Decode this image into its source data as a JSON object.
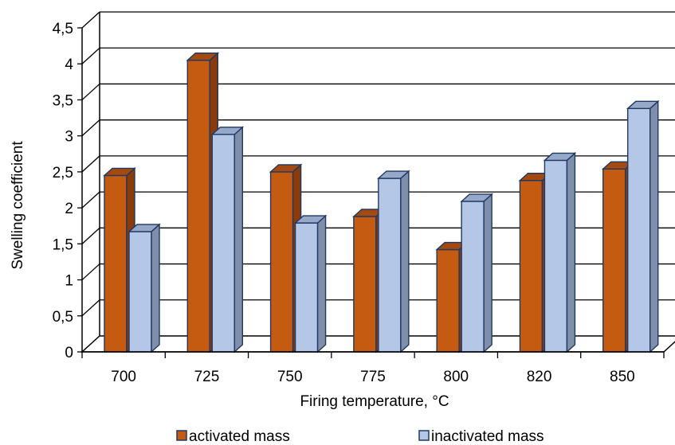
{
  "chart_data": {
    "type": "bar",
    "variant": "3d-clustered-column",
    "categories": [
      "700",
      "725",
      "750",
      "775",
      "800",
      "820",
      "850"
    ],
    "series": [
      {
        "name": "activated mass",
        "values": [
          2.45,
          4.05,
          2.5,
          1.88,
          1.42,
          2.38,
          2.54
        ],
        "color": "#C55A11",
        "side_color": "#8B3A0A",
        "top_color": "#A24A0F"
      },
      {
        "name": "inactivated mass",
        "values": [
          1.67,
          3.02,
          1.79,
          2.41,
          2.09,
          2.66,
          3.38
        ],
        "color": "#B4C7E7",
        "side_color": "#7F8FA9",
        "top_color": "#97A9C8"
      }
    ],
    "xlabel": "Firing temperature, °C",
    "ylabel": "Swelling coefficient",
    "ylim": [
      0,
      4.5
    ],
    "y_ticks": [
      "0",
      "0,5",
      "1",
      "1,5",
      "2",
      "2,5",
      "3",
      "3,5",
      "4",
      "4,5"
    ],
    "grid": true,
    "legend_position": "bottom"
  }
}
